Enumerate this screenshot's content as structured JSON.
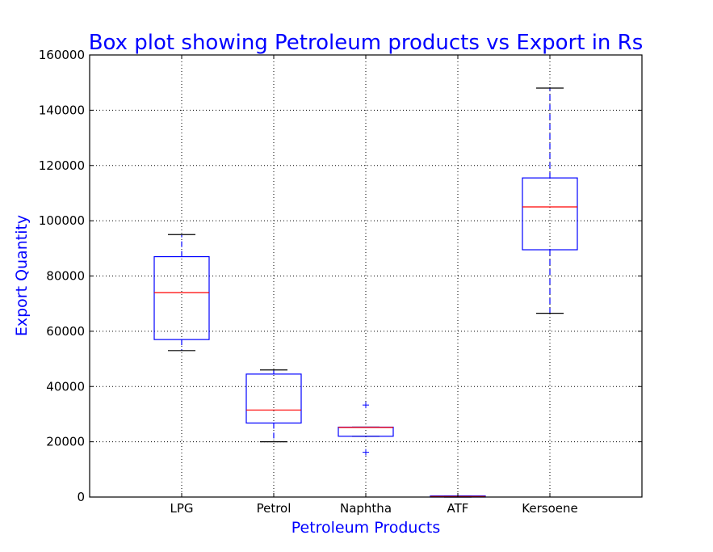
{
  "chart_data": {
    "type": "box",
    "title": "Box plot showing Petroleum products vs Export in Rs",
    "xlabel": "Petroleum Products",
    "ylabel": "Export Quantity",
    "ylim": [
      0,
      160000
    ],
    "yticks": [
      0,
      20000,
      40000,
      60000,
      80000,
      100000,
      120000,
      140000,
      160000
    ],
    "grid": true,
    "categories": [
      "LPG",
      "Petrol",
      "Naphtha",
      "ATF",
      "Kersoene"
    ],
    "boxes": [
      {
        "category": "LPG",
        "whisker_low": 53000,
        "q1": 57000,
        "median": 74000,
        "q3": 87000,
        "whisker_high": 95000,
        "outliers": []
      },
      {
        "category": "Petrol",
        "whisker_low": 20000,
        "q1": 26800,
        "median": 31500,
        "q3": 44500,
        "whisker_high": 46000,
        "outliers": []
      },
      {
        "category": "Naphtha",
        "whisker_low": 22000,
        "q1": 22000,
        "median": 25200,
        "q3": 25300,
        "whisker_high": 25300,
        "outliers": [
          33300,
          16200
        ]
      },
      {
        "category": "ATF",
        "whisker_low": 0,
        "q1": 0,
        "median": 200,
        "q3": 400,
        "whisker_high": 400,
        "outliers": []
      },
      {
        "category": "Kersoene",
        "whisker_low": 66500,
        "q1": 89500,
        "median": 105000,
        "q3": 115500,
        "whisker_high": 148000,
        "outliers": []
      }
    ],
    "colors": {
      "box": "#0000ff",
      "median": "#ff0000",
      "cap": "#000000",
      "title": "#0000ff"
    }
  }
}
